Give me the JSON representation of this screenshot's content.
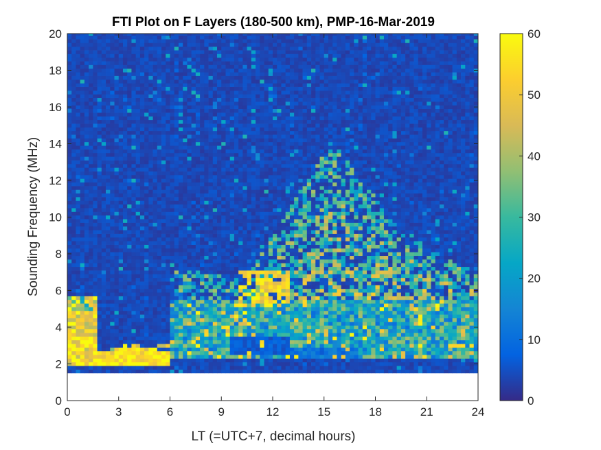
{
  "chart_data": {
    "type": "heatmap",
    "title": "FTI Plot on F Layers (180-500 km), PMP-16-Mar-2019",
    "xlabel": "LT (=UTC+7, decimal hours)",
    "ylabel": "Sounding Frequency (MHz)",
    "xlim": [
      0,
      24
    ],
    "ylim": [
      0,
      20
    ],
    "xticks": [
      0,
      3,
      6,
      9,
      12,
      15,
      18,
      21,
      24
    ],
    "yticks": [
      0,
      2,
      4,
      6,
      8,
      10,
      12,
      14,
      16,
      18,
      20
    ],
    "data_frequency_range_mhz": [
      1.5,
      20
    ],
    "colorbar": {
      "colormap": "parula",
      "range": [
        0,
        60
      ],
      "ticks": [
        0,
        10,
        20,
        30,
        40,
        50,
        60
      ]
    },
    "features": [
      {
        "lt": [
          0,
          1.8
        ],
        "freq_mhz": [
          2.0,
          5.8
        ],
        "level": "saturated (>=55)"
      },
      {
        "lt": [
          1.8,
          6.0
        ],
        "freq_mhz": [
          2.0,
          3.0
        ],
        "level": "saturated (>=55)"
      },
      {
        "lt": [
          6.0,
          24
        ],
        "freq_mhz": [
          2.3,
          5.5
        ],
        "level": "moderate-high (15-45)"
      },
      {
        "lt": [
          10.0,
          20.0
        ],
        "freq_mhz": [
          5.5,
          10.2
        ],
        "level": "high (30-55)"
      },
      {
        "lt": [
          11.5,
          19.0
        ],
        "freq_mhz": [
          10.2,
          14.2
        ],
        "level": "moderate (25-50), peak near LT 15.5"
      },
      {
        "lt": [
          0,
          24
        ],
        "freq_mhz": [
          1.5,
          20
        ],
        "level": "background (~2-6)"
      }
    ]
  }
}
